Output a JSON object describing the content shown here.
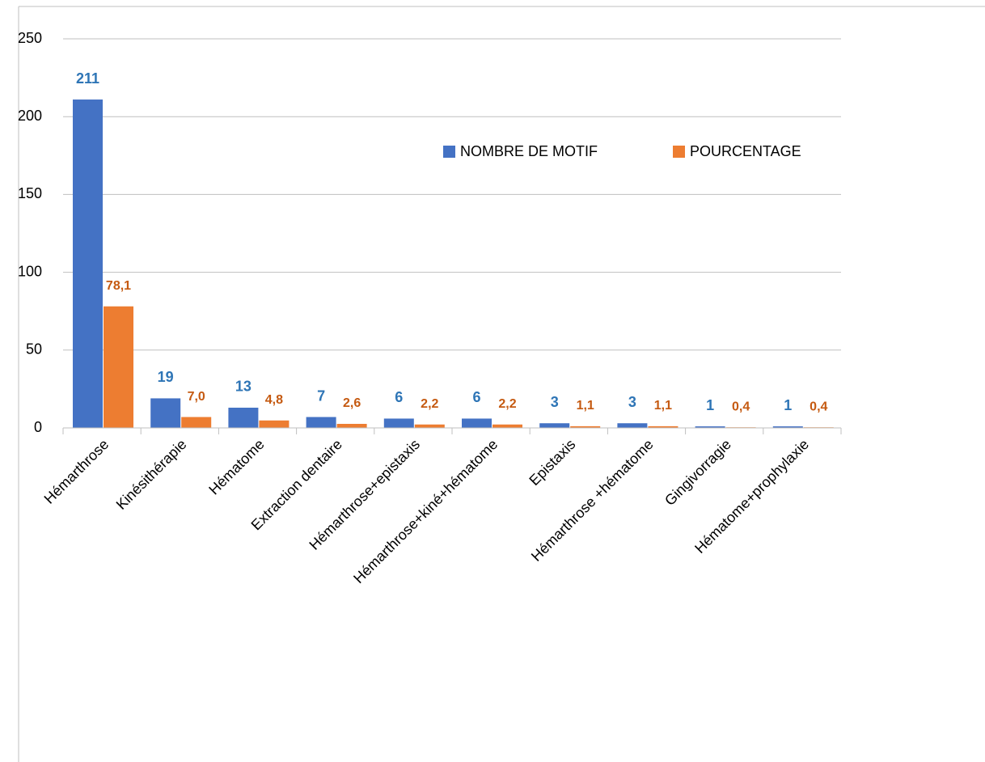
{
  "chart_data": {
    "type": "bar",
    "categories": [
      "Hémarthrose",
      "Kinésithérapie",
      "Hématome",
      "Extraction dentaire",
      "Hémarthrose+epistaxis",
      "Hémarthrose+kiné+hématome",
      "Epistaxis",
      "Hémarthrose +hématome",
      "Gingivorragie",
      "Hématome+prophylaxie"
    ],
    "series": [
      {
        "name": "NOMBRE DE MOTIF",
        "color": "#4472c4",
        "label_color": "#2e75b6",
        "values": [
          211,
          19,
          13,
          7,
          6,
          6,
          3,
          3,
          1,
          1
        ]
      },
      {
        "name": "POURCENTAGE",
        "color": "#ed7d31",
        "label_color": "#c55a11",
        "values": [
          78.1,
          7.0,
          4.8,
          2.6,
          2.2,
          2.2,
          1.1,
          1.1,
          0.4,
          0.4
        ],
        "value_labels": [
          "78,1",
          "7,0",
          "4,8",
          "2,6",
          "2,2",
          "2,2",
          "1,1",
          "1,1",
          "0,4",
          "0,4"
        ]
      }
    ],
    "ylim": [
      0,
      250
    ],
    "yticks": [
      0,
      50,
      100,
      150,
      200,
      250
    ],
    "grid": true,
    "legend": "top-right"
  }
}
